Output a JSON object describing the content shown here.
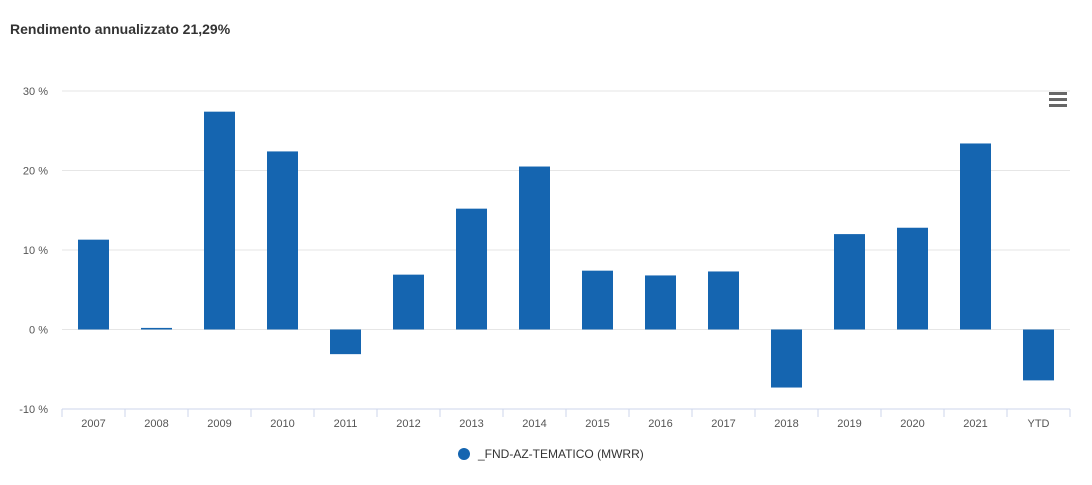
{
  "title": "Rendimento annualizzato 21,29%",
  "menu_icon": "hamburger-menu-icon",
  "chart_data": {
    "type": "bar",
    "categories": [
      "2007",
      "2008",
      "2009",
      "2010",
      "2011",
      "2012",
      "2013",
      "2014",
      "2015",
      "2016",
      "2017",
      "2018",
      "2019",
      "2020",
      "2021",
      "YTD"
    ],
    "series": [
      {
        "name": "_FND-AZ-TEMATICO (MWRR)",
        "color": "#1565b0",
        "values": [
          11.3,
          0.2,
          27.4,
          22.4,
          -3.1,
          6.9,
          15.2,
          20.5,
          7.4,
          6.8,
          7.3,
          -7.3,
          12.0,
          12.8,
          23.4,
          -6.4
        ]
      }
    ],
    "yticks": [
      "30 %",
      "20 %",
      "10 %",
      "0 %",
      "-10 %"
    ],
    "ytick_values": [
      30,
      20,
      10,
      0,
      -10
    ],
    "ylim": [
      -10,
      30
    ],
    "grid": true,
    "legend_position": "bottom-center"
  }
}
